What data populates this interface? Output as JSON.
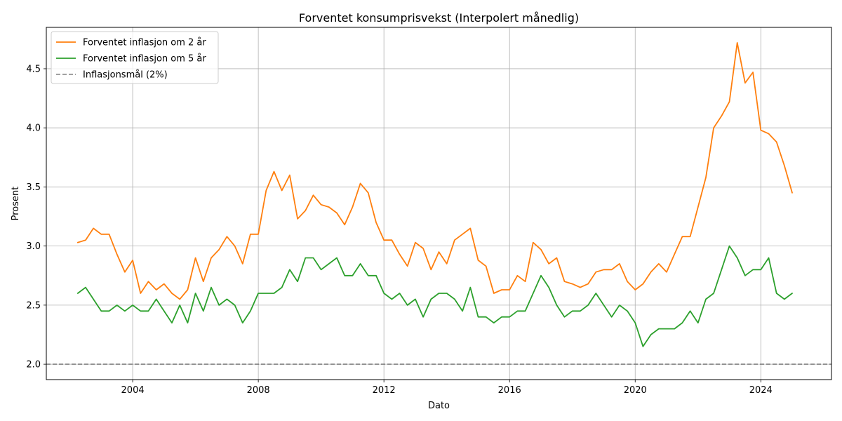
{
  "chart_data": {
    "type": "line",
    "title": "Forventet konsumprisvekst (Interpolert månedlig)",
    "xlabel": "Dato",
    "ylabel": "Prosent",
    "xlim": [
      2001.25,
      2026.25
    ],
    "ylim": [
      1.87,
      4.85
    ],
    "x_ticks": [
      2004,
      2008,
      2012,
      2016,
      2020,
      2024
    ],
    "y_ticks": [
      2.0,
      2.5,
      3.0,
      3.5,
      4.0,
      4.5
    ],
    "y_tick_labels": [
      "2.0",
      "2.5",
      "3.0",
      "3.5",
      "4.0",
      "4.5"
    ],
    "grid": true,
    "legend_position": "top-left",
    "x": [
      2002.25,
      2002.5,
      2002.75,
      2003.0,
      2003.25,
      2003.5,
      2003.75,
      2004.0,
      2004.25,
      2004.5,
      2004.75,
      2005.0,
      2005.25,
      2005.5,
      2005.75,
      2006.0,
      2006.25,
      2006.5,
      2006.75,
      2007.0,
      2007.25,
      2007.5,
      2007.75,
      2008.0,
      2008.25,
      2008.5,
      2008.75,
      2009.0,
      2009.25,
      2009.5,
      2009.75,
      2010.0,
      2010.25,
      2010.5,
      2010.75,
      2011.0,
      2011.25,
      2011.5,
      2011.75,
      2012.0,
      2012.25,
      2012.5,
      2012.75,
      2013.0,
      2013.25,
      2013.5,
      2013.75,
      2014.0,
      2014.25,
      2014.5,
      2014.75,
      2015.0,
      2015.25,
      2015.5,
      2015.75,
      2016.0,
      2016.25,
      2016.5,
      2016.75,
      2017.0,
      2017.25,
      2017.5,
      2017.75,
      2018.0,
      2018.25,
      2018.5,
      2018.75,
      2019.0,
      2019.25,
      2019.5,
      2019.75,
      2020.0,
      2020.25,
      2020.5,
      2020.75,
      2021.0,
      2021.25,
      2021.5,
      2021.75,
      2022.0,
      2022.25,
      2022.5,
      2022.75,
      2023.0,
      2023.25,
      2023.5,
      2023.75,
      2024.0,
      2024.25,
      2024.5,
      2024.75,
      2025.0
    ],
    "series": [
      {
        "name": "Forventet inflasjon om 2 år",
        "color": "#ff7f0e",
        "dash": "solid",
        "values": [
          3.03,
          3.05,
          3.15,
          3.1,
          3.1,
          2.93,
          2.78,
          2.88,
          2.6,
          2.7,
          2.63,
          2.68,
          2.6,
          2.55,
          2.63,
          2.9,
          2.7,
          2.9,
          2.97,
          3.08,
          3.0,
          2.85,
          3.1,
          3.1,
          3.47,
          3.63,
          3.47,
          3.6,
          3.23,
          3.3,
          3.43,
          3.35,
          3.33,
          3.28,
          3.18,
          3.33,
          3.53,
          3.45,
          3.2,
          3.05,
          3.05,
          2.93,
          2.83,
          3.03,
          2.98,
          2.8,
          2.95,
          2.85,
          3.05,
          3.1,
          3.15,
          2.88,
          2.83,
          2.6,
          2.63,
          2.63,
          2.75,
          2.7,
          3.03,
          2.97,
          2.85,
          2.9,
          2.7,
          2.68,
          2.65,
          2.68,
          2.78,
          2.8,
          2.8,
          2.85,
          2.7,
          2.63,
          2.68,
          2.78,
          2.85,
          2.78,
          2.93,
          3.08,
          3.08,
          3.33,
          3.58,
          4.0,
          4.1,
          4.22,
          4.72,
          4.38,
          4.47,
          3.98,
          3.95,
          3.88,
          3.68,
          3.45
        ]
      },
      {
        "name": "Forventet inflasjon om 5 år",
        "color": "#2ca02c",
        "dash": "solid",
        "values": [
          2.6,
          2.65,
          2.55,
          2.45,
          2.45,
          2.5,
          2.45,
          2.5,
          2.45,
          2.45,
          2.55,
          2.45,
          2.35,
          2.5,
          2.35,
          2.6,
          2.45,
          2.65,
          2.5,
          2.55,
          2.5,
          2.35,
          2.45,
          2.6,
          2.6,
          2.6,
          2.65,
          2.8,
          2.7,
          2.9,
          2.9,
          2.8,
          2.85,
          2.9,
          2.75,
          2.75,
          2.85,
          2.75,
          2.75,
          2.6,
          2.55,
          2.6,
          2.5,
          2.55,
          2.4,
          2.55,
          2.6,
          2.6,
          2.55,
          2.45,
          2.65,
          2.4,
          2.4,
          2.35,
          2.4,
          2.4,
          2.45,
          2.45,
          2.6,
          2.75,
          2.65,
          2.5,
          2.4,
          2.45,
          2.45,
          2.5,
          2.6,
          2.5,
          2.4,
          2.5,
          2.45,
          2.35,
          2.15,
          2.25,
          2.3,
          2.3,
          2.3,
          2.35,
          2.45,
          2.35,
          2.55,
          2.6,
          2.8,
          3.0,
          2.9,
          2.75,
          2.8,
          2.8,
          2.9,
          2.6,
          2.55,
          2.6
        ]
      }
    ],
    "reference_lines": [
      {
        "name": "Inflasjonsmål (2%)",
        "y": 2.0,
        "color": "#808080",
        "dash": "dashed"
      }
    ]
  }
}
